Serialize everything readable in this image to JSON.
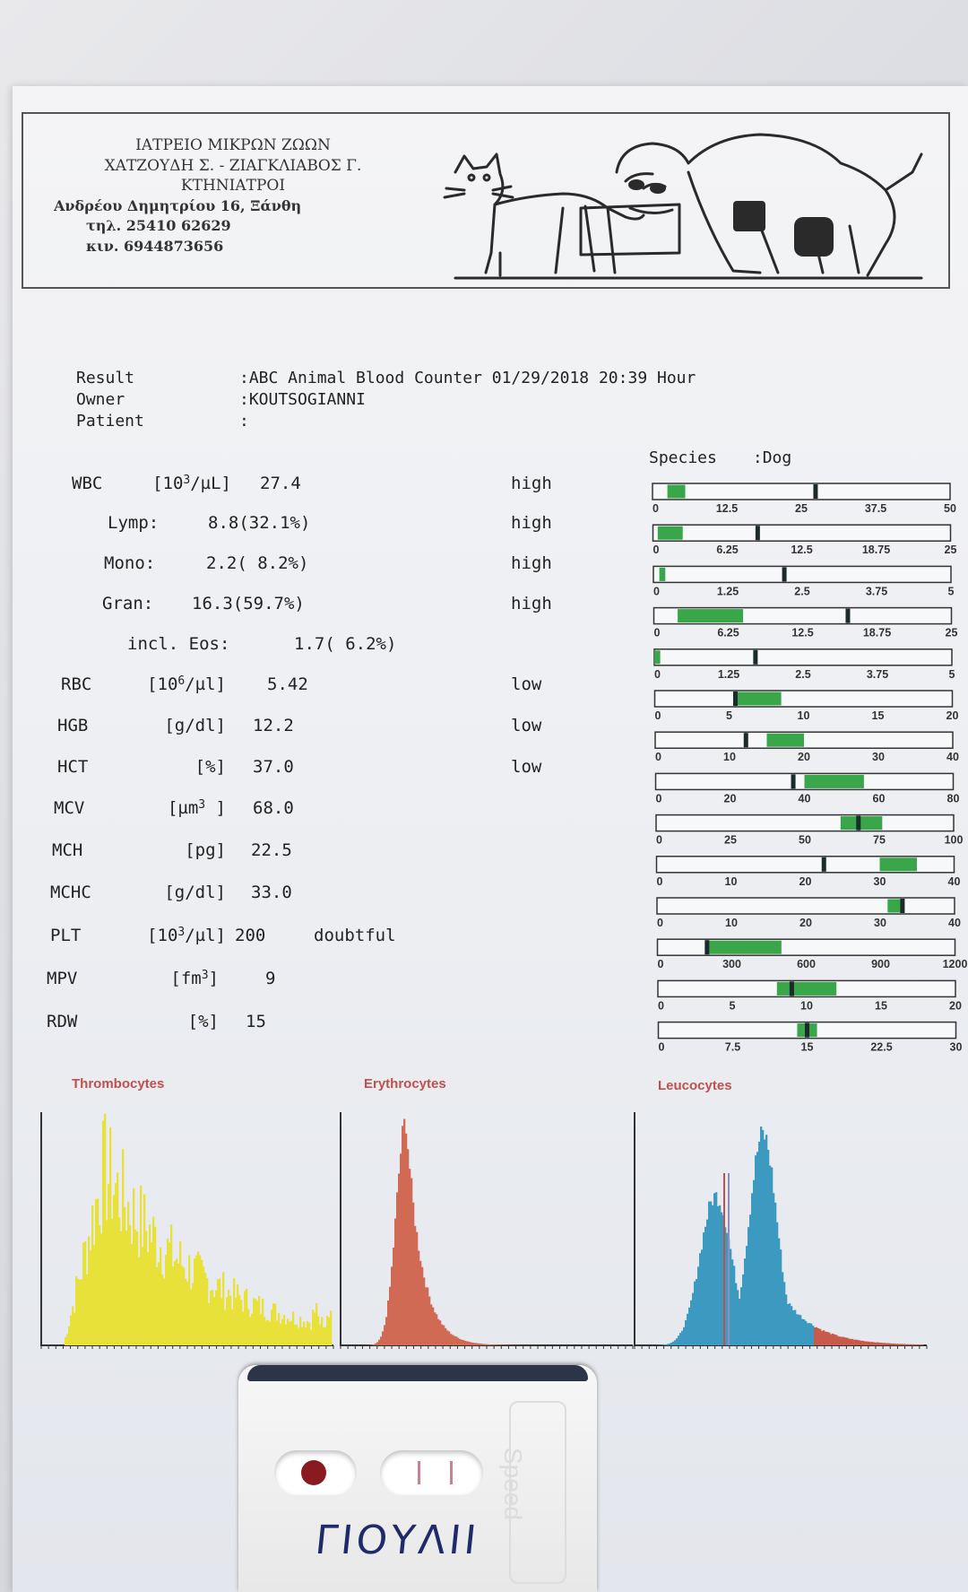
{
  "clinic": {
    "line1": "ΙΑΤΡΕΙΟ ΜΙΚΡΩΝ ΖΩΩΝ",
    "line2": "ΧΑΤΖΟΥΔΗ Σ. - ΖΙΑΓΚΛΙΑΒΟΣ Γ.",
    "line3": "ΚΤΗΝΙΑΤΡΟΙ",
    "address": "Ανδρέου Δημητρίου 16, Ξάνθη",
    "phone": "τηλ. 25410 62629",
    "mobile": "κιν. 6944873656"
  },
  "meta": {
    "result_label": "Result",
    "result_value": ":ABC Animal Blood Counter 01/29/2018 20:39 Hour",
    "owner_label": "Owner",
    "owner_value": ":KOUTSOGIANNI",
    "patient_label": "Patient",
    "patient_value": ":"
  },
  "species": {
    "label": "Species",
    "value": ":Dog"
  },
  "rows": [
    {
      "lbl": "WBC",
      "unit_pre": "[10",
      "unit_sup": "3",
      "unit_post": "/µL]",
      "value": "27.4",
      "flag": "high"
    },
    {
      "lbl": "Lymp:",
      "unit_pre": "",
      "unit_sup": "",
      "unit_post": "",
      "value": "8.8(32.1%)",
      "flag": "high"
    },
    {
      "lbl": "Mono:",
      "unit_pre": "",
      "unit_sup": "",
      "unit_post": "",
      "value": "2.2( 8.2%)",
      "flag": "high"
    },
    {
      "lbl": "Gran:",
      "unit_pre": "",
      "unit_sup": "",
      "unit_post": "",
      "value": "16.3(59.7%)",
      "flag": "high"
    },
    {
      "lbl": "incl. Eos:",
      "unit_pre": "",
      "unit_sup": "",
      "unit_post": "",
      "value": "1.7( 6.2%)",
      "flag": ""
    },
    {
      "lbl": "RBC",
      "unit_pre": "[10",
      "unit_sup": "6",
      "unit_post": "/µl]",
      "value": "5.42",
      "flag": "low"
    },
    {
      "lbl": "HGB",
      "unit_pre": "[g/dl]",
      "unit_sup": "",
      "unit_post": "",
      "value": "12.2",
      "flag": "low"
    },
    {
      "lbl": "HCT",
      "unit_pre": "[%]",
      "unit_sup": "",
      "unit_post": "",
      "value": "37.0",
      "flag": "low"
    },
    {
      "lbl": "MCV",
      "unit_pre": "[µm",
      "unit_sup": "3",
      "unit_post": " ]",
      "value": "68.0",
      "flag": ""
    },
    {
      "lbl": "MCH",
      "unit_pre": "[pg]",
      "unit_sup": "",
      "unit_post": "",
      "value": "22.5",
      "flag": ""
    },
    {
      "lbl": "MCHC",
      "unit_pre": "[g/dl]",
      "unit_sup": "",
      "unit_post": "",
      "value": "33.0",
      "flag": ""
    },
    {
      "lbl": "PLT",
      "unit_pre": "[10",
      "unit_sup": "3",
      "unit_post": "/µl]",
      "value": "200",
      "flag": "doubtful"
    },
    {
      "lbl": "MPV",
      "unit_pre": "[fm",
      "unit_sup": "3",
      "unit_post": "]",
      "value": "9",
      "flag": ""
    },
    {
      "lbl": "RDW",
      "unit_pre": "[%]",
      "unit_sup": "",
      "unit_post": "",
      "value": "15",
      "flag": ""
    }
  ],
  "scales": [
    {
      "ticks": [
        "0",
        "12.5",
        "25",
        "37.5",
        "50"
      ],
      "max": 50,
      "ref": [
        2.5,
        5.5
      ],
      "value": 27.4
    },
    {
      "ticks": [
        "0",
        "6.25",
        "12.5",
        "18.75",
        "25"
      ],
      "max": 25,
      "ref": [
        0.4,
        2.5
      ],
      "value": 8.8
    },
    {
      "ticks": [
        "0",
        "1.25",
        "2.5",
        "3.75",
        "5"
      ],
      "max": 5,
      "ref": [
        0.1,
        0.2
      ],
      "value": 2.2
    },
    {
      "ticks": [
        "0",
        "6.25",
        "12.5",
        "18.75",
        "25"
      ],
      "max": 25,
      "ref": [
        2.0,
        7.5
      ],
      "value": 16.3
    },
    {
      "ticks": [
        "0",
        "1.25",
        "2.5",
        "3.75",
        "5"
      ],
      "max": 5,
      "ref": [
        0.0,
        0.1
      ],
      "value": 1.7
    },
    {
      "ticks": [
        "0",
        "5",
        "10",
        "15",
        "20"
      ],
      "max": 20,
      "ref": [
        5.5,
        8.5
      ],
      "value": 5.42
    },
    {
      "ticks": [
        "0",
        "10",
        "20",
        "30",
        "40"
      ],
      "max": 40,
      "ref": [
        15.0,
        20.0
      ],
      "value": 12.2
    },
    {
      "ticks": [
        "0",
        "20",
        "40",
        "60",
        "80"
      ],
      "max": 80,
      "ref": [
        40.0,
        56.0
      ],
      "value": 37.0
    },
    {
      "ticks": [
        "0",
        "25",
        "50",
        "75",
        "100"
      ],
      "max": 100,
      "ref": [
        62.0,
        76.0
      ],
      "value": 68.0
    },
    {
      "ticks": [
        "0",
        "10",
        "20",
        "30",
        "40"
      ],
      "max": 40,
      "ref": [
        30.0,
        35.0
      ],
      "value": 22.5
    },
    {
      "ticks": [
        "0",
        "10",
        "20",
        "30",
        "40"
      ],
      "max": 40,
      "ref": [
        31.0,
        33.0
      ],
      "value": 33.0
    },
    {
      "ticks": [
        "0",
        "300",
        "600",
        "900",
        "1200"
      ],
      "max": 1200,
      "ref": [
        200,
        500
      ],
      "value": 200
    },
    {
      "ticks": [
        "0",
        "5",
        "10",
        "15",
        "20"
      ],
      "max": 20,
      "ref": [
        8.0,
        12.0
      ],
      "value": 9
    },
    {
      "ticks": [
        "0",
        "7.5",
        "15",
        "22.5",
        "30"
      ],
      "max": 30,
      "ref": [
        14.0,
        16.0
      ],
      "value": 15
    }
  ],
  "histograms": {
    "thrombocytes": "Thrombocytes",
    "erythrocytes": "Erythrocytes",
    "leucocytes": "Leucocytes"
  },
  "colors": {
    "bar_green": "#3aa64a",
    "marker": "#1b2a2a",
    "thrombo": "#e8e13a",
    "erythro": "#d06a55",
    "leuco": "#3c9ac0",
    "leuco_tail": "#c75a4a"
  },
  "cartridge": {
    "handwriting": "ΓΙΟΥΛΙΙ",
    "brand": "Speed"
  }
}
